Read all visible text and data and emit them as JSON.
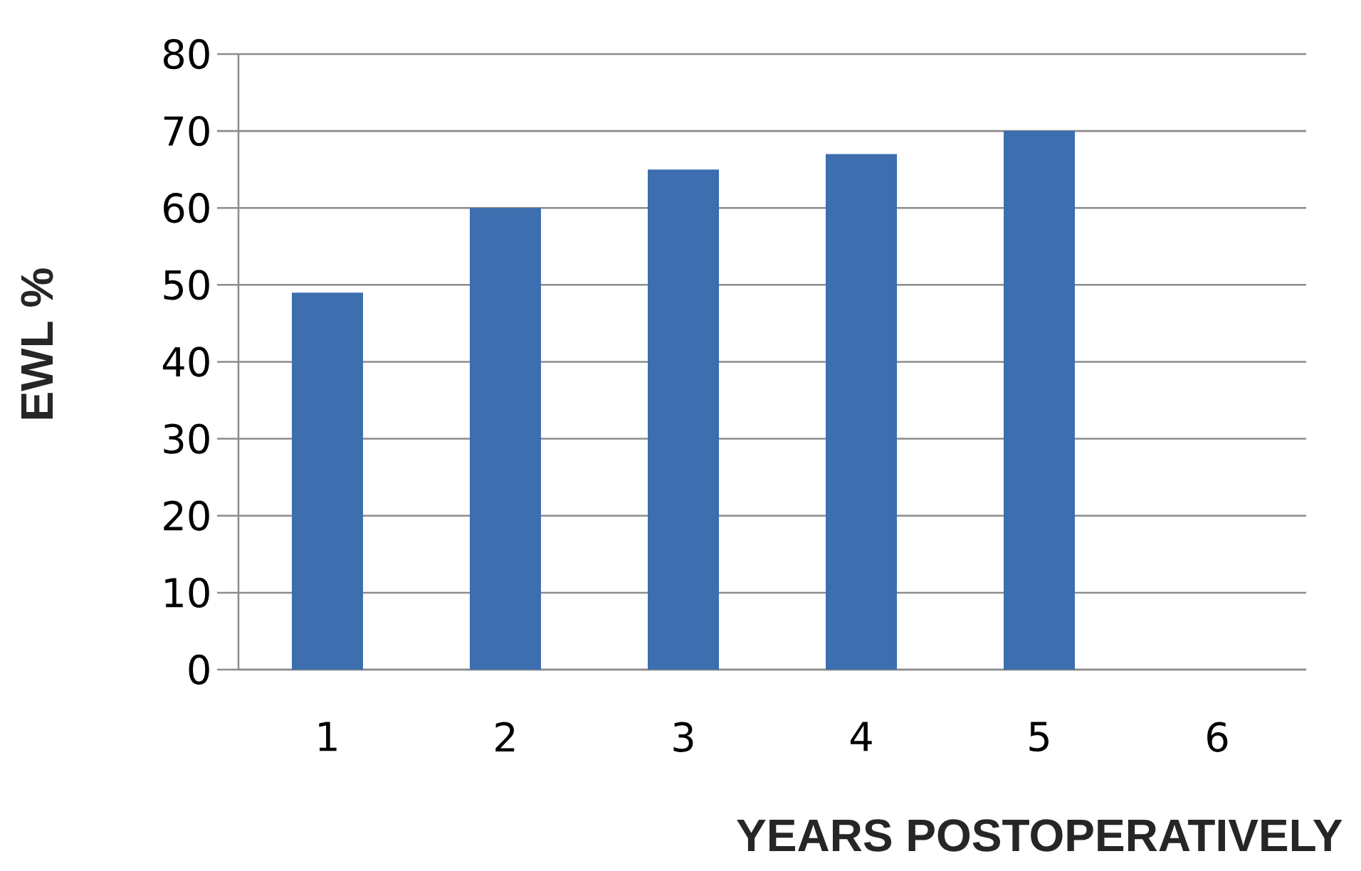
{
  "chart_data": {
    "type": "bar",
    "xlabel": "YEARS POSTOPERATIVELY",
    "ylabel": "EWL %",
    "categories": [
      "1",
      "2",
      "3",
      "4",
      "5",
      "6"
    ],
    "values": [
      49,
      60,
      65,
      67,
      70,
      null
    ],
    "color": "#3c6eb0",
    "ylim": [
      0,
      80
    ],
    "yticks": [
      0,
      10,
      20,
      30,
      40,
      50,
      60,
      70,
      80
    ],
    "grid": "y"
  }
}
